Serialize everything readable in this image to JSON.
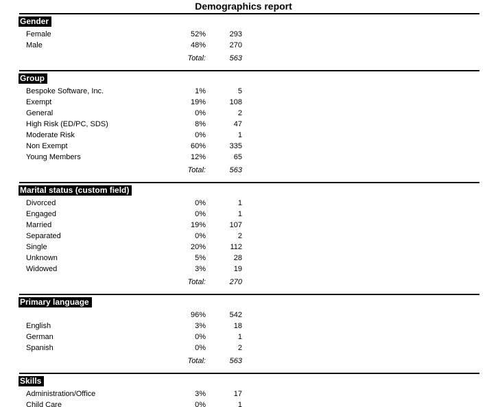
{
  "page": {
    "title": "Demographics report",
    "total_label": "Total:",
    "colors": {
      "background": "#ffffff",
      "text": "#000000",
      "heading_bg": "#000000",
      "heading_text": "#ffffff"
    },
    "sections": [
      {
        "heading": "Gender",
        "rows": [
          {
            "label": "Female",
            "percent": "52%",
            "count": "293"
          },
          {
            "label": "Male",
            "percent": "48%",
            "count": "270"
          }
        ],
        "total": "563"
      },
      {
        "heading": "Group",
        "rows": [
          {
            "label": "Bespoke Software, Inc.",
            "percent": "1%",
            "count": "5"
          },
          {
            "label": "Exempt",
            "percent": "19%",
            "count": "108"
          },
          {
            "label": "General",
            "percent": "0%",
            "count": "2"
          },
          {
            "label": "High Risk (ED/PC, SDS)",
            "percent": "8%",
            "count": "47"
          },
          {
            "label": "Moderate Risk",
            "percent": "0%",
            "count": "1"
          },
          {
            "label": "Non Exempt",
            "percent": "60%",
            "count": "335"
          },
          {
            "label": "Young Members",
            "percent": "12%",
            "count": "65"
          }
        ],
        "total": "563"
      },
      {
        "heading": "Marital status (custom field)",
        "rows": [
          {
            "label": "Divorced",
            "percent": "0%",
            "count": "1"
          },
          {
            "label": "Engaged",
            "percent": "0%",
            "count": "1"
          },
          {
            "label": "Married",
            "percent": "19%",
            "count": "107"
          },
          {
            "label": "Separated",
            "percent": "0%",
            "count": "2"
          },
          {
            "label": "Single",
            "percent": "20%",
            "count": "112"
          },
          {
            "label": "Unknown",
            "percent": "5%",
            "count": "28"
          },
          {
            "label": "Widowed",
            "percent": "3%",
            "count": "19"
          }
        ],
        "total": "270"
      },
      {
        "heading": "Primary language",
        "rows": [
          {
            "label": "",
            "percent": "96%",
            "count": "542"
          },
          {
            "label": "English",
            "percent": "3%",
            "count": "18"
          },
          {
            "label": "German",
            "percent": "0%",
            "count": "1"
          },
          {
            "label": "Spanish",
            "percent": "0%",
            "count": "2"
          }
        ],
        "total": "563"
      },
      {
        "heading": "Skills",
        "rows": [
          {
            "label": "Administration/Office",
            "percent": "3%",
            "count": "17"
          },
          {
            "label": "Child Care",
            "percent": "0%",
            "count": "1"
          }
        ]
      }
    ]
  }
}
